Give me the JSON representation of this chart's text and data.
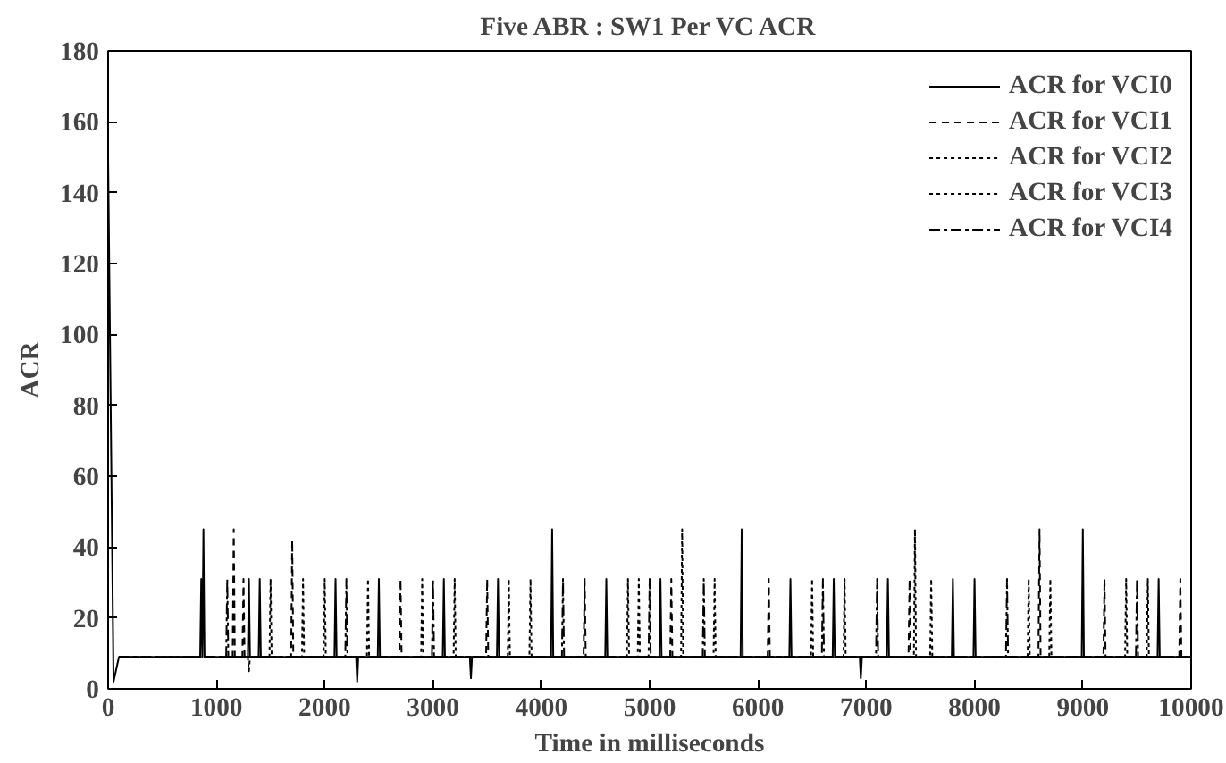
{
  "chart_data": {
    "type": "line",
    "title": "Five ABR : SW1 Per VC ACR",
    "xlabel": "Time in milliseconds",
    "ylabel": "ACR",
    "xlim": [
      0,
      10000
    ],
    "xticks": [
      0,
      1000,
      2000,
      3000,
      4000,
      5000,
      6000,
      7000,
      8000,
      9000,
      10000
    ],
    "ylim": [
      0,
      180
    ],
    "yticks": [
      0,
      20,
      40,
      60,
      80,
      100,
      120,
      140,
      160,
      180
    ],
    "grid": false,
    "legend": "top right",
    "series": [
      {
        "name": "ACR for VCI0",
        "color": "#000000",
        "line_style": "solid",
        "x": [
          0,
          50,
          100,
          850,
          860,
          870,
          880,
          890,
          1290,
          1300,
          1310,
          1390,
          1400,
          1410,
          2090,
          2100,
          2110,
          2290,
          2300,
          2310,
          2490,
          2500,
          2510,
          3090,
          3100,
          3110,
          3340,
          3350,
          3360,
          3590,
          3600,
          3610,
          4090,
          4100,
          4110,
          4590,
          4600,
          4610,
          5090,
          5100,
          5110,
          5840,
          5850,
          5860,
          6290,
          6300,
          6310,
          6690,
          6700,
          6710,
          6940,
          6950,
          6960,
          7190,
          7200,
          7210,
          7790,
          7800,
          7810,
          7990,
          8000,
          8010,
          8990,
          9000,
          9010,
          9690,
          9700,
          9710,
          10000
        ],
        "values": [
          150,
          2,
          9,
          9,
          31,
          9,
          45,
          9,
          9,
          31,
          9,
          9,
          31,
          9,
          9,
          31,
          9,
          9,
          2,
          9,
          9,
          31,
          9,
          9,
          31,
          9,
          9,
          3,
          9,
          9,
          31,
          9,
          9,
          45,
          9,
          9,
          31,
          9,
          9,
          31,
          9,
          9,
          45,
          9,
          9,
          31,
          9,
          9,
          31,
          9,
          9,
          3,
          9,
          9,
          31,
          9,
          9,
          31,
          9,
          9,
          31,
          9,
          9,
          45,
          9,
          9,
          31,
          9,
          9
        ]
      },
      {
        "name": "ACR for VCI1",
        "color": "#000000",
        "line_style": "dashed",
        "x": [
          100,
          1150,
          1160,
          1170,
          1240,
          1250,
          1260,
          1690,
          1700,
          1710,
          2690,
          2700,
          2710,
          3490,
          3500,
          3510,
          4390,
          4400,
          4410,
          5190,
          5200,
          5210,
          6090,
          6100,
          6110,
          7390,
          7400,
          7410,
          8590,
          8600,
          8610,
          9190,
          9200,
          9210,
          9890,
          9900,
          9910,
          10000
        ],
        "values": [
          9,
          9,
          45,
          9,
          9,
          31,
          9,
          9,
          42,
          9,
          9,
          31,
          9,
          9,
          31,
          9,
          9,
          31,
          9,
          9,
          31,
          9,
          9,
          31,
          9,
          9,
          31,
          9,
          9,
          45,
          9,
          9,
          31,
          9,
          9,
          31,
          9,
          9
        ]
      },
      {
        "name": "ACR for VCI2",
        "color": "#000000",
        "line_style": "dotted",
        "x": [
          100,
          1490,
          1500,
          1510,
          1990,
          2000,
          2010,
          2890,
          2900,
          2910,
          3690,
          3700,
          3710,
          4790,
          4800,
          4810,
          5290,
          5300,
          5310,
          6490,
          6500,
          6510,
          7440,
          7450,
          7460,
          8490,
          8500,
          8510,
          9390,
          9400,
          9410,
          10000
        ],
        "values": [
          9,
          9,
          31,
          9,
          9,
          31,
          9,
          9,
          31,
          9,
          9,
          31,
          9,
          9,
          31,
          9,
          9,
          45,
          9,
          9,
          31,
          9,
          9,
          45,
          9,
          9,
          31,
          9,
          9,
          31,
          9,
          9
        ]
      },
      {
        "name": "ACR for VCI3",
        "color": "#000000",
        "line_style": "dotted",
        "x": [
          100,
          1290,
          1300,
          1310,
          1790,
          1800,
          1810,
          2390,
          2400,
          2410,
          3190,
          3200,
          3210,
          3890,
          3900,
          3910,
          4890,
          4900,
          4910,
          5590,
          5600,
          5610,
          6790,
          6800,
          6810,
          7590,
          7600,
          7610,
          8690,
          8700,
          8710,
          9590,
          9600,
          9610,
          10000
        ],
        "values": [
          9,
          9,
          5,
          9,
          9,
          31,
          9,
          9,
          31,
          9,
          9,
          31,
          9,
          9,
          31,
          9,
          9,
          31,
          9,
          9,
          31,
          9,
          9,
          31,
          9,
          9,
          31,
          9,
          9,
          31,
          9,
          9,
          31,
          9,
          9
        ]
      },
      {
        "name": "ACR for VCI4",
        "color": "#000000",
        "line_style": "dashdot",
        "x": [
          100,
          1090,
          1100,
          1110,
          2190,
          2200,
          2210,
          2990,
          3000,
          3010,
          4190,
          4200,
          4210,
          4990,
          5000,
          5010,
          5490,
          5500,
          5510,
          6590,
          6600,
          6610,
          7090,
          7100,
          7110,
          8290,
          8300,
          8310,
          9490,
          9500,
          9510,
          10000
        ],
        "values": [
          9,
          9,
          31,
          9,
          9,
          31,
          9,
          9,
          31,
          9,
          9,
          31,
          9,
          9,
          31,
          9,
          9,
          31,
          9,
          9,
          31,
          9,
          9,
          31,
          9,
          9,
          31,
          9,
          9,
          31,
          9,
          9
        ]
      }
    ]
  }
}
